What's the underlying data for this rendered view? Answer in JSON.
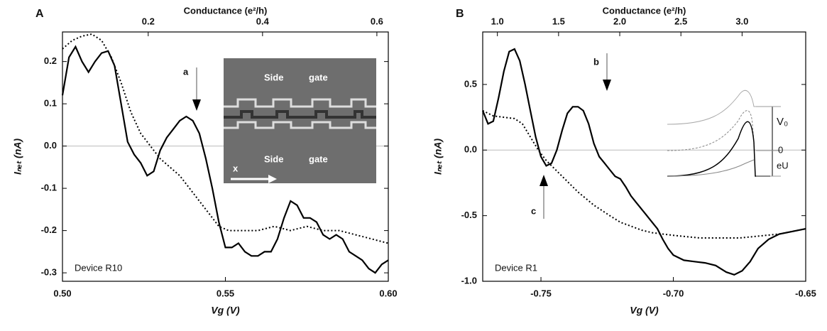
{
  "chart_data": [
    {
      "type": "line",
      "panel_label": "A",
      "top_axis_label": "Conductance (e²/h)",
      "xlabel": "Vg (V)",
      "ylabel": "Iₙₑₜ (nA)",
      "annotations": [
        "a",
        "Device R10",
        "Side",
        "gate",
        "Side",
        "gate",
        "x"
      ],
      "xlim": [
        0.5,
        0.6
      ],
      "xticks": [
        {
          "value": 0.5,
          "label": "0.50"
        },
        {
          "value": 0.55,
          "label": "0.55"
        },
        {
          "value": 0.6,
          "label": "0.60"
        }
      ],
      "x2lim": [
        0.05,
        0.62
      ],
      "x2ticks": [
        0.2,
        0.4,
        0.6
      ],
      "ylim": [
        -0.32,
        0.27
      ],
      "yticks": [
        0.2,
        0.1,
        {
          "value": 0.0,
          "label": "0.0"
        },
        -0.1,
        -0.2,
        -0.3
      ],
      "zero_line": true,
      "series": [
        {
          "color": "#000000",
          "style": "solid",
          "x": [
            0.5,
            0.502,
            0.504,
            0.506,
            0.508,
            0.51,
            0.512,
            0.514,
            0.516,
            0.518,
            0.52,
            0.522,
            0.524,
            0.526,
            0.528,
            0.53,
            0.532,
            0.534,
            0.536,
            0.538,
            0.54,
            0.542,
            0.544,
            0.546,
            0.548,
            0.55,
            0.552,
            0.554,
            0.556,
            0.558,
            0.56,
            0.562,
            0.564,
            0.566,
            0.568,
            0.57,
            0.572,
            0.574,
            0.576,
            0.578,
            0.58,
            0.582,
            0.584,
            0.586,
            0.588,
            0.59,
            0.592,
            0.594,
            0.596,
            0.598,
            0.6
          ],
          "values": [
            0.12,
            0.21,
            0.235,
            0.2,
            0.175,
            0.2,
            0.22,
            0.225,
            0.19,
            0.1,
            0.01,
            -0.02,
            -0.04,
            -0.07,
            -0.06,
            -0.01,
            0.02,
            0.04,
            0.06,
            0.07,
            0.06,
            0.03,
            -0.03,
            -0.1,
            -0.18,
            -0.24,
            -0.24,
            -0.23,
            -0.25,
            -0.26,
            -0.26,
            -0.25,
            -0.25,
            -0.22,
            -0.17,
            -0.13,
            -0.14,
            -0.17,
            -0.17,
            -0.18,
            -0.21,
            -0.22,
            -0.21,
            -0.22,
            -0.25,
            -0.26,
            -0.27,
            -0.29,
            -0.3,
            -0.28,
            -0.27
          ]
        },
        {
          "color": "#000000",
          "style": "dotted",
          "x": [
            0.5,
            0.503,
            0.506,
            0.509,
            0.512,
            0.515,
            0.518,
            0.521,
            0.524,
            0.527,
            0.53,
            0.533,
            0.536,
            0.539,
            0.542,
            0.545,
            0.548,
            0.551,
            0.555,
            0.56,
            0.565,
            0.57,
            0.575,
            0.58,
            0.585,
            0.59,
            0.595,
            0.6
          ],
          "values": [
            0.23,
            0.25,
            0.26,
            0.265,
            0.25,
            0.21,
            0.15,
            0.08,
            0.03,
            0.0,
            -0.03,
            -0.05,
            -0.07,
            -0.1,
            -0.13,
            -0.16,
            -0.19,
            -0.2,
            -0.2,
            -0.2,
            -0.19,
            -0.2,
            -0.19,
            -0.2,
            -0.2,
            -0.21,
            -0.22,
            -0.23
          ]
        }
      ]
    },
    {
      "type": "line",
      "panel_label": "B",
      "top_axis_label": "Conductance (e²/h)",
      "xlabel": "Vg (V)",
      "ylabel": "Iₙₑₜ (nA)",
      "annotations": [
        "b",
        "c",
        "Device R1",
        "V₀",
        "0",
        "eU"
      ],
      "xlim": [
        -0.772,
        -0.65
      ],
      "xticks": [
        -0.75,
        {
          "value": -0.7,
          "label": "-0.70"
        },
        -0.65
      ],
      "x2lim": [
        0.88,
        3.52
      ],
      "x2ticks": [
        {
          "value": 1.0,
          "label": "1.0"
        },
        1.5,
        {
          "value": 2.0,
          "label": "2.0"
        },
        2.5,
        {
          "value": 3.0,
          "label": "3.0"
        }
      ],
      "ylim": [
        -1.0,
        0.9
      ],
      "yticks": [
        0.5,
        {
          "value": 0.0,
          "label": "0.0"
        },
        -0.5,
        {
          "value": -1.0,
          "label": "-1.0"
        }
      ],
      "zero_line": true,
      "series": [
        {
          "color": "#000000",
          "style": "solid",
          "x": [
            -0.772,
            -0.77,
            -0.768,
            -0.766,
            -0.764,
            -0.762,
            -0.76,
            -0.758,
            -0.756,
            -0.754,
            -0.752,
            -0.75,
            -0.748,
            -0.746,
            -0.744,
            -0.742,
            -0.74,
            -0.738,
            -0.736,
            -0.734,
            -0.732,
            -0.73,
            -0.728,
            -0.726,
            -0.724,
            -0.722,
            -0.72,
            -0.718,
            -0.716,
            -0.714,
            -0.712,
            -0.71,
            -0.708,
            -0.706,
            -0.704,
            -0.702,
            -0.7,
            -0.696,
            -0.692,
            -0.688,
            -0.684,
            -0.68,
            -0.677,
            -0.674,
            -0.671,
            -0.668,
            -0.664,
            -0.66,
            -0.655,
            -0.65
          ],
          "values": [
            0.3,
            0.2,
            0.22,
            0.4,
            0.6,
            0.75,
            0.77,
            0.68,
            0.5,
            0.3,
            0.1,
            -0.05,
            -0.12,
            -0.1,
            0.0,
            0.15,
            0.28,
            0.33,
            0.33,
            0.3,
            0.2,
            0.05,
            -0.05,
            -0.1,
            -0.15,
            -0.2,
            -0.22,
            -0.28,
            -0.35,
            -0.4,
            -0.45,
            -0.5,
            -0.55,
            -0.6,
            -0.68,
            -0.75,
            -0.8,
            -0.84,
            -0.85,
            -0.86,
            -0.88,
            -0.93,
            -0.95,
            -0.92,
            -0.85,
            -0.75,
            -0.68,
            -0.64,
            -0.62,
            -0.6
          ]
        },
        {
          "color": "#000000",
          "style": "dotted",
          "x": [
            -0.772,
            -0.768,
            -0.764,
            -0.76,
            -0.757,
            -0.754,
            -0.751,
            -0.748,
            -0.745,
            -0.742,
            -0.739,
            -0.736,
            -0.733,
            -0.73,
            -0.727,
            -0.724,
            -0.72,
            -0.716,
            -0.712,
            -0.708,
            -0.704,
            -0.7,
            -0.695,
            -0.69,
            -0.685,
            -0.68,
            -0.675,
            -0.67,
            -0.665,
            -0.66,
            -0.655,
            -0.65
          ],
          "values": [
            0.3,
            0.26,
            0.25,
            0.24,
            0.2,
            0.1,
            0.0,
            -0.08,
            -0.14,
            -0.2,
            -0.26,
            -0.32,
            -0.37,
            -0.42,
            -0.46,
            -0.5,
            -0.55,
            -0.58,
            -0.61,
            -0.63,
            -0.64,
            -0.65,
            -0.66,
            -0.67,
            -0.67,
            -0.67,
            -0.67,
            -0.66,
            -0.65,
            -0.64,
            -0.62,
            -0.6
          ]
        }
      ]
    }
  ]
}
